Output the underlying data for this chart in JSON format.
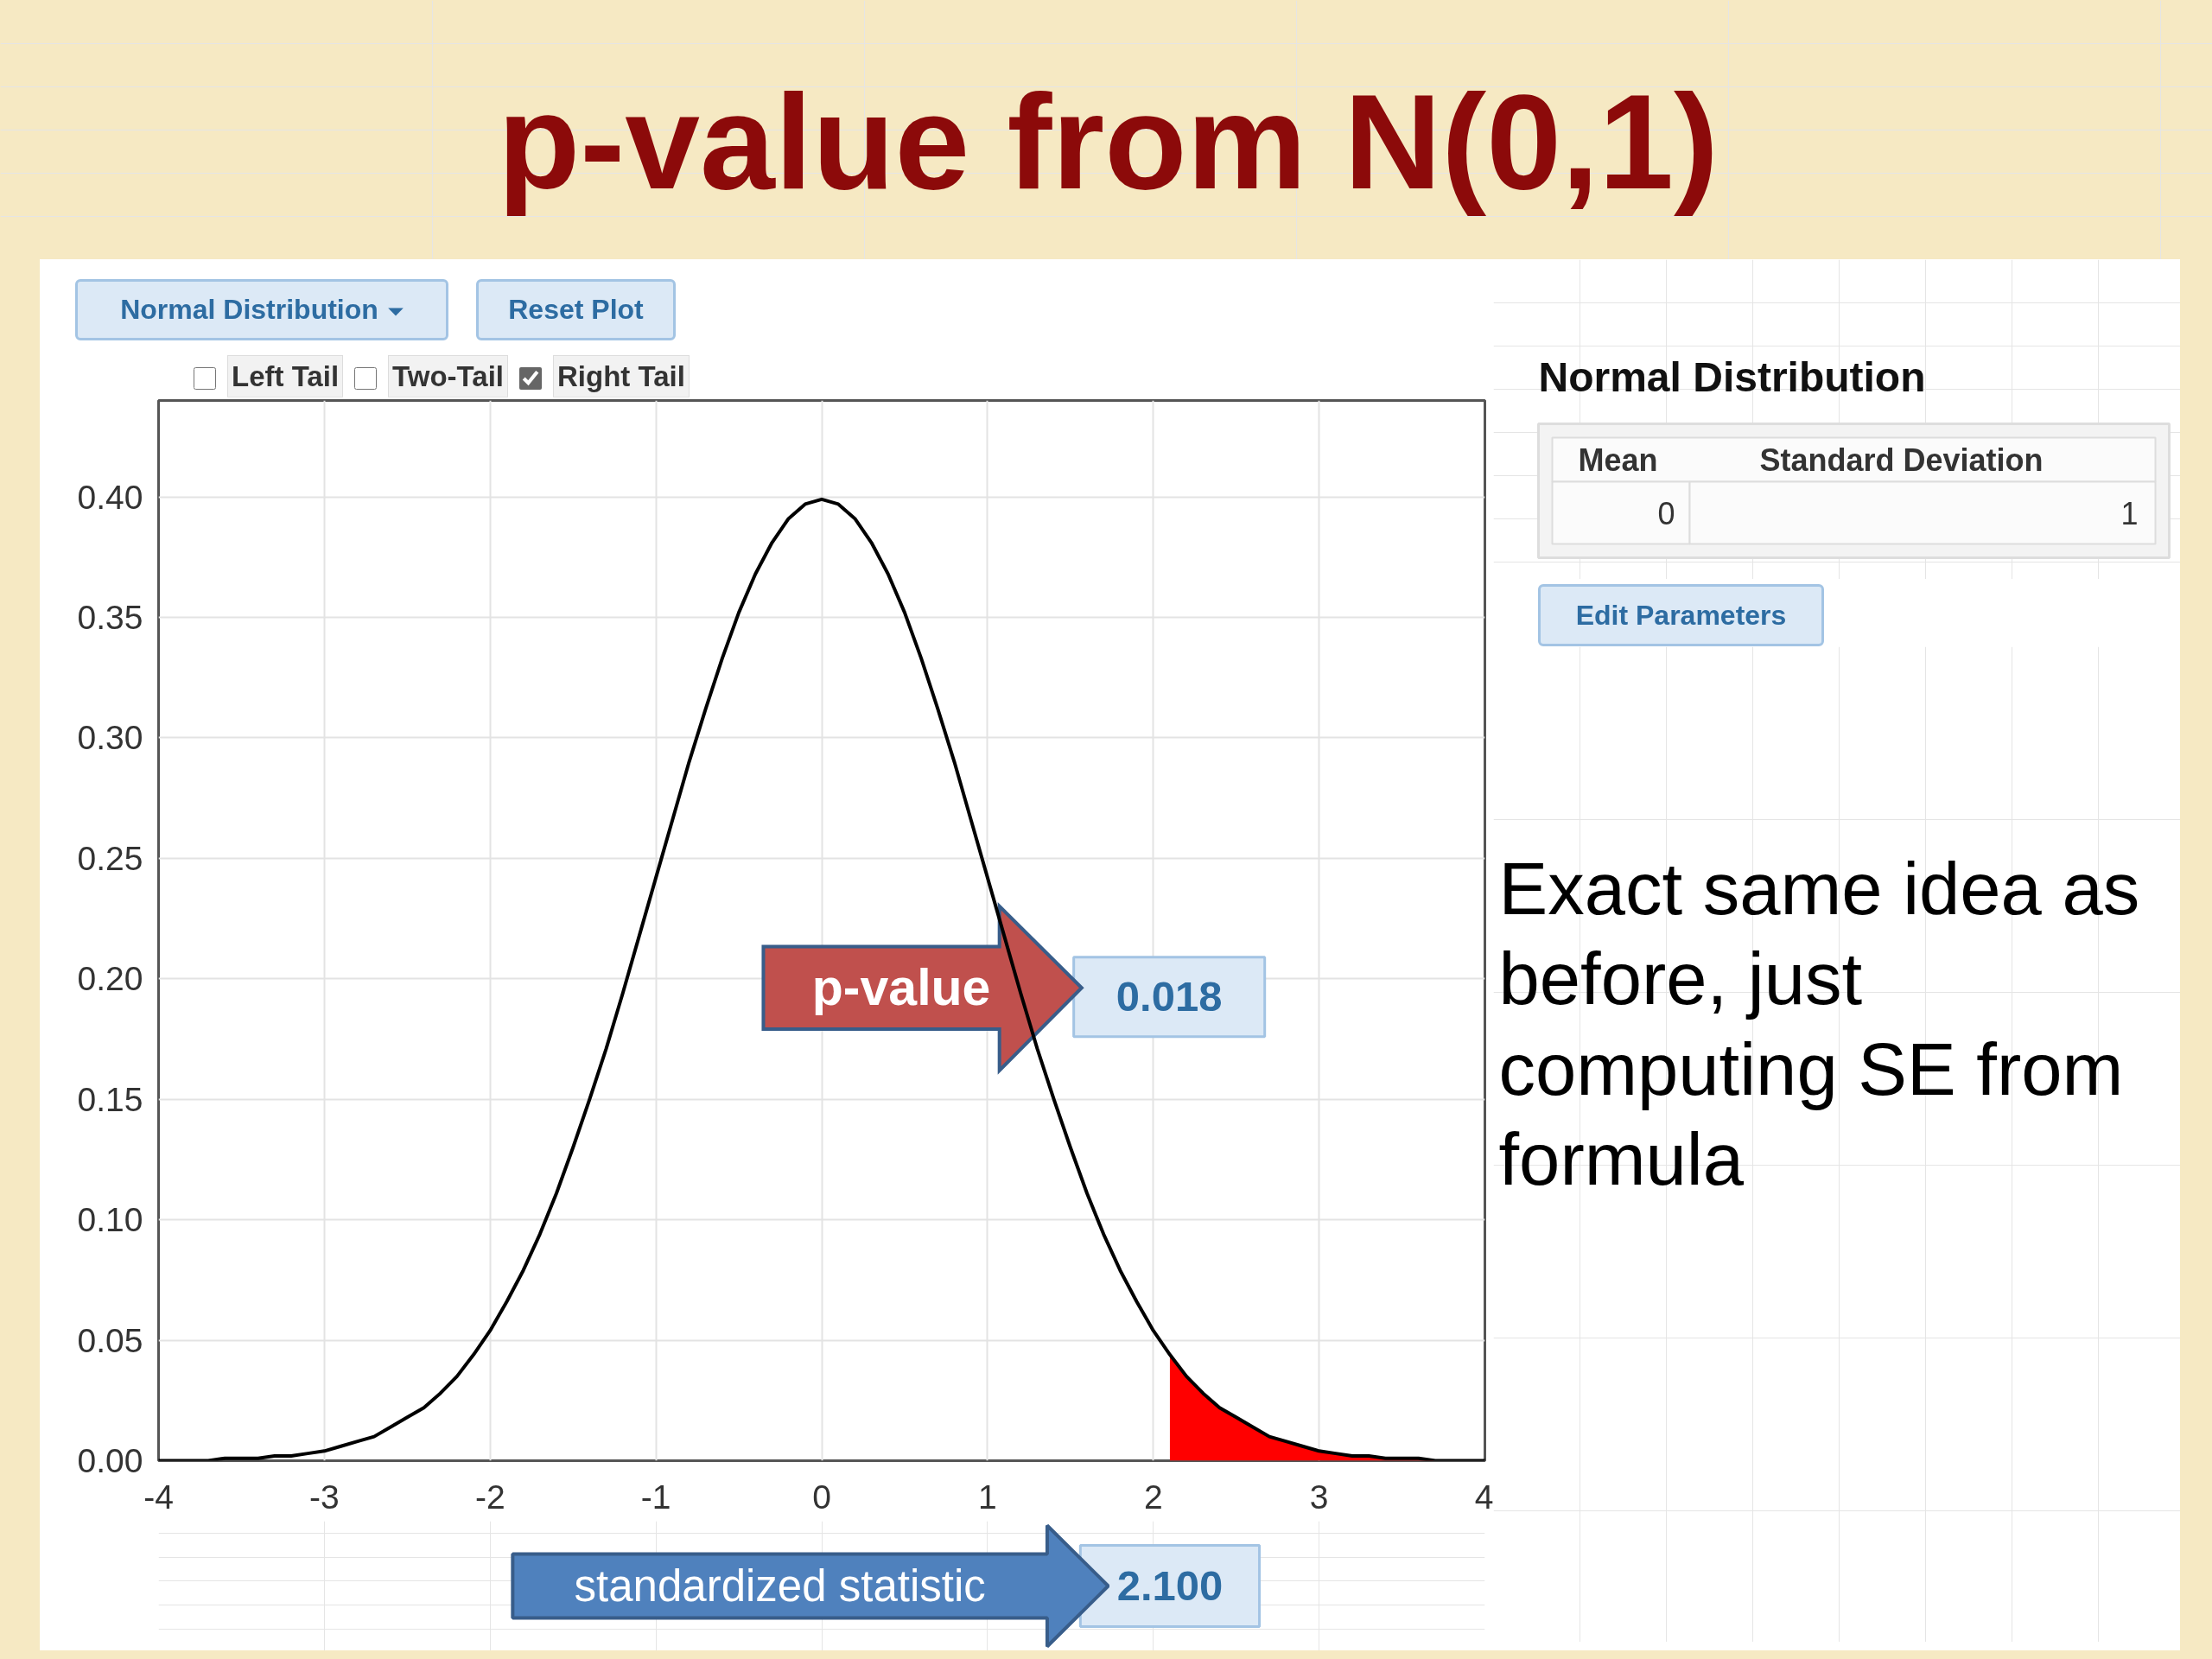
{
  "chart_data": {
    "type": "line",
    "title": "p-value from N(0,1)",
    "series": [
      {
        "type": "line",
        "color": "#000000",
        "x": [
          -4.0,
          -3.9,
          -3.8,
          -3.7,
          -3.6,
          -3.5,
          -3.4,
          -3.3,
          -3.2,
          -3.1,
          -3.0,
          -2.9,
          -2.8,
          -2.7,
          -2.6,
          -2.5,
          -2.4,
          -2.3,
          -2.2,
          -2.1,
          -2.0,
          -1.9,
          -1.8,
          -1.7,
          -1.6,
          -1.5,
          -1.4,
          -1.3,
          -1.2,
          -1.1,
          -1.0,
          -0.9,
          -0.8,
          -0.7,
          -0.6,
          -0.5,
          -0.4,
          -0.3,
          -0.2,
          -0.1,
          0.0,
          0.1,
          0.2,
          0.3,
          0.4,
          0.5,
          0.6,
          0.7,
          0.8,
          0.9,
          1.0,
          1.1,
          1.2,
          1.3,
          1.4,
          1.5,
          1.6,
          1.7,
          1.8,
          1.9,
          2.0,
          2.1,
          2.2,
          2.3,
          2.4,
          2.5,
          2.6,
          2.7,
          2.8,
          2.9,
          3.0,
          3.1,
          3.2,
          3.3,
          3.4,
          3.5,
          3.6,
          3.7,
          3.8,
          3.9,
          4.0
        ],
        "values": [
          0.0,
          0.0,
          0.0,
          0.0,
          0.001,
          0.001,
          0.001,
          0.002,
          0.002,
          0.003,
          0.004,
          0.006,
          0.008,
          0.01,
          0.014,
          0.018,
          0.022,
          0.028,
          0.035,
          0.044,
          0.054,
          0.066,
          0.079,
          0.094,
          0.111,
          0.13,
          0.15,
          0.171,
          0.194,
          0.218,
          0.242,
          0.266,
          0.29,
          0.312,
          0.333,
          0.352,
          0.368,
          0.381,
          0.391,
          0.397,
          0.399,
          0.397,
          0.391,
          0.381,
          0.368,
          0.352,
          0.333,
          0.312,
          0.29,
          0.266,
          0.242,
          0.218,
          0.194,
          0.171,
          0.15,
          0.13,
          0.111,
          0.094,
          0.079,
          0.066,
          0.054,
          0.044,
          0.035,
          0.028,
          0.022,
          0.018,
          0.014,
          0.01,
          0.008,
          0.006,
          0.004,
          0.003,
          0.002,
          0.002,
          0.001,
          0.001,
          0.001,
          0.0,
          0.0,
          0.0,
          0.0
        ]
      },
      {
        "type": "area",
        "color": "#ff0000",
        "x": [
          2.1,
          2.2,
          2.3,
          2.4,
          2.5,
          2.6,
          2.7,
          2.8,
          2.9,
          3.0,
          3.1,
          3.2,
          3.3,
          3.4,
          3.5,
          3.6,
          3.7,
          3.8,
          3.9,
          4.0
        ],
        "values": [
          0.044,
          0.035,
          0.028,
          0.022,
          0.018,
          0.014,
          0.01,
          0.008,
          0.006,
          0.004,
          0.003,
          0.002,
          0.002,
          0.001,
          0.001,
          0.001,
          0.0,
          0.0,
          0.0,
          0.0
        ]
      }
    ],
    "xlim": [
      -4,
      4
    ],
    "ylim": [
      0,
      0.44
    ],
    "xticks": [
      -4,
      -3,
      -2,
      -1,
      0,
      1,
      2,
      3,
      4
    ],
    "yticks": [
      {
        "value": 0,
        "label": "0.00"
      },
      {
        "value": 0.05,
        "label": "0.05"
      },
      {
        "value": 0.1,
        "label": "0.10"
      },
      {
        "value": 0.15,
        "label": "0.15"
      },
      {
        "value": 0.2,
        "label": "0.20"
      },
      {
        "value": 0.25,
        "label": "0.25"
      },
      {
        "value": 0.3,
        "label": "0.30"
      },
      {
        "value": 0.35,
        "label": "0.35"
      },
      {
        "value": 0.4,
        "label": "0.40"
      }
    ],
    "grid": true,
    "annotations": [
      "Normal Distribution",
      "Reset Plot",
      "Left Tail",
      "Two-Tail",
      "Right Tail",
      "p-value",
      "0.018",
      {
        "text": "2.100",
        "x": 2.1,
        "y": 0
      },
      "standardized statistic",
      "Normal Distribution",
      "Mean",
      "Standard Deviation",
      "0",
      "1",
      "Edit Parameters",
      "Exact same idea as before, just computing SE from formula"
    ]
  }
}
